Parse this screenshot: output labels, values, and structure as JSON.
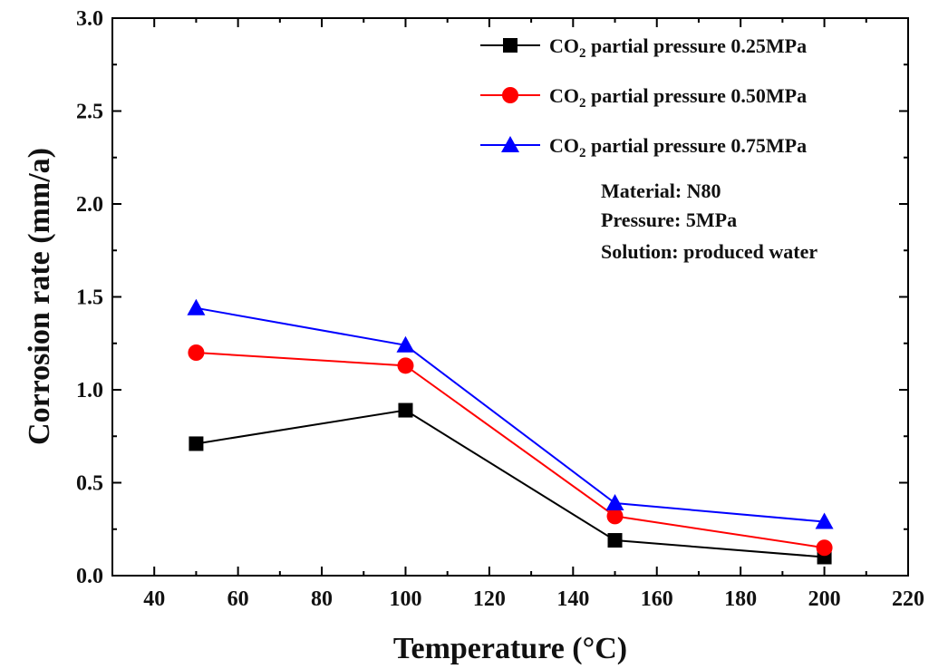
{
  "chart_data": {
    "type": "line",
    "xlabel": "Temperature (°C)",
    "ylabel": "Corrosion rate (mm/a)",
    "xlim": [
      30,
      220
    ],
    "ylim": [
      0.0,
      3.0
    ],
    "x_ticks": [
      40,
      60,
      80,
      100,
      120,
      140,
      160,
      180,
      200,
      220
    ],
    "y_ticks": [
      "0.0",
      "0.5",
      "1.0",
      "1.5",
      "2.0",
      "2.5",
      "3.0"
    ],
    "x": [
      50,
      100,
      150,
      200
    ],
    "series": [
      {
        "name_prefix": "CO",
        "name_sub": "2",
        "name_suffix": " partial pressure 0.25MPa",
        "values": [
          0.71,
          0.89,
          0.19,
          0.1
        ],
        "color": "#000000",
        "marker": "square"
      },
      {
        "name_prefix": "CO",
        "name_sub": "2",
        "name_suffix": " partial pressure 0.50MPa",
        "values": [
          1.2,
          1.13,
          0.32,
          0.15
        ],
        "color": "#ff0000",
        "marker": "circle"
      },
      {
        "name_prefix": "CO",
        "name_sub": "2",
        "name_suffix": " partial pressure 0.75MPa",
        "values": [
          1.44,
          1.24,
          0.39,
          0.29
        ],
        "color": "#0000ff",
        "marker": "triangle"
      }
    ],
    "legend_position": "top-right",
    "annotations": [
      "Material: N80",
      "Pressure: 5MPa",
      "Solution: produced water"
    ],
    "grid": false
  }
}
